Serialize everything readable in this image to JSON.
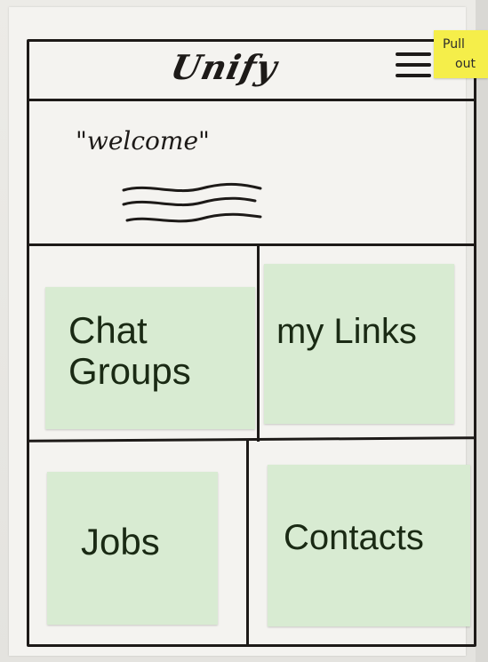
{
  "header": {
    "logo_text": "Unify",
    "menu_icon": "hamburger-menu-icon"
  },
  "note": {
    "line1": "Pull",
    "line2": "out"
  },
  "welcome": {
    "text": "\"welcome\""
  },
  "tiles": [
    {
      "label": "Chat Groups"
    },
    {
      "label": "my Links"
    },
    {
      "label": "Jobs"
    },
    {
      "label": "Contacts"
    }
  ],
  "colors": {
    "ink": "#1d1a18",
    "sticky_green": "#d8ebd2",
    "sticky_yellow": "#f5ee4a",
    "paper": "#f4f3f0"
  }
}
